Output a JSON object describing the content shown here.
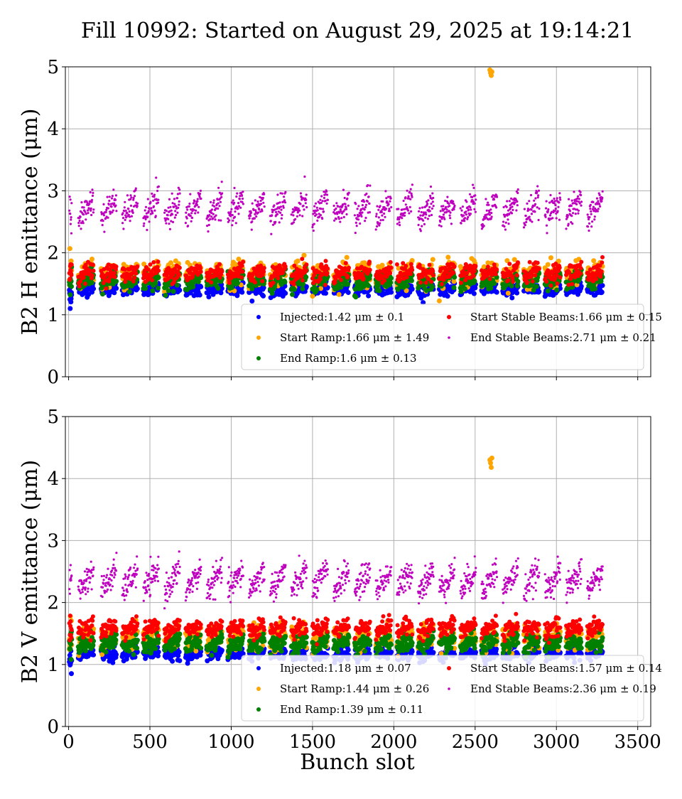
{
  "figure": {
    "title": "Fill 10992: Started on August 29, 2025 at 19:14:21",
    "xlabel": "Bunch slot"
  },
  "colors": {
    "injected": "#0000ff",
    "start_ramp": "#ffa500",
    "end_ramp": "#008000",
    "start_stable": "#ff0000",
    "end_stable": "#bf00bf"
  },
  "chart_data": [
    {
      "type": "scatter",
      "ylabel": "B2 H emittance (μm)",
      "xlim": [
        -20,
        3580
      ],
      "ylim": [
        0,
        5
      ],
      "xticks": [
        0,
        500,
        1000,
        1500,
        2000,
        2500,
        3000,
        3500
      ],
      "xtick_labels_visible": false,
      "yticks": [
        0,
        1,
        2,
        3,
        4,
        5
      ],
      "grid": true,
      "legend_placement": "lower-right",
      "series": [
        {
          "key": "injected",
          "name": "Injected:1.42 μm ± 0.1",
          "mean": 1.42,
          "std": 0.1,
          "color": "#0000ff",
          "marker_size": 3.5
        },
        {
          "key": "start_ramp",
          "name": "Start Ramp:1.66 μm ± 1.49",
          "mean": 1.66,
          "std": 1.49,
          "color": "#ffa500",
          "marker_size": 3.5,
          "outliers": [
            [
              2591,
              4.95
            ],
            [
              2595,
              4.9
            ],
            [
              2599,
              4.86
            ],
            [
              2603,
              4.92
            ]
          ]
        },
        {
          "key": "end_ramp",
          "name": "End Ramp:1.6 μm ± 0.13",
          "mean": 1.6,
          "std": 0.13,
          "color": "#008000",
          "marker_size": 3.5
        },
        {
          "key": "start_stable",
          "name": "Start Stable Beams:1.66 μm ± 0.15",
          "mean": 1.66,
          "std": 0.15,
          "color": "#ff0000",
          "marker_size": 3
        },
        {
          "key": "end_stable",
          "name": "End Stable Beams:2.71 μm ± 0.21",
          "mean": 2.71,
          "std": 0.21,
          "color": "#bf00bf",
          "marker_size": 1.6
        }
      ]
    },
    {
      "type": "scatter",
      "ylabel": "B2 V emittance (μm)",
      "xlim": [
        -20,
        3580
      ],
      "ylim": [
        0,
        5
      ],
      "xticks": [
        0,
        500,
        1000,
        1500,
        2000,
        2500,
        3000,
        3500
      ],
      "xtick_labels_visible": true,
      "yticks": [
        0,
        1,
        2,
        3,
        4,
        5
      ],
      "grid": true,
      "legend_placement": "lower-right",
      "series": [
        {
          "key": "injected",
          "name": "Injected:1.18 μm ± 0.07",
          "mean": 1.18,
          "std": 0.07,
          "color": "#0000ff",
          "marker_size": 3.5
        },
        {
          "key": "start_ramp",
          "name": "Start Ramp:1.44 μm ± 0.26",
          "mean": 1.44,
          "std": 0.26,
          "color": "#ffa500",
          "marker_size": 3.5,
          "outliers": [
            [
              2591,
              4.3
            ],
            [
              2595,
              4.25
            ],
            [
              2599,
              4.18
            ],
            [
              2603,
              4.33
            ]
          ]
        },
        {
          "key": "end_ramp",
          "name": "End Ramp:1.39 μm ± 0.11",
          "mean": 1.39,
          "std": 0.11,
          "color": "#008000",
          "marker_size": 3.5
        },
        {
          "key": "start_stable",
          "name": "Start Stable Beams:1.57 μm ± 0.14",
          "mean": 1.57,
          "std": 0.14,
          "color": "#ff0000",
          "marker_size": 3
        },
        {
          "key": "end_stable",
          "name": "End Stable Beams:2.36 μm ± 0.19",
          "mean": 2.36,
          "std": 0.19,
          "color": "#bf00bf",
          "marker_size": 1.6
        }
      ]
    }
  ],
  "trains_start_slots": [
    60,
    200,
    330,
    460,
    590,
    720,
    850,
    980,
    1110,
    1240,
    1370,
    1500,
    1630,
    1760,
    1890,
    2020,
    2150,
    2280,
    2410,
    2540,
    2670,
    2800,
    2930,
    3060,
    3190
  ]
}
